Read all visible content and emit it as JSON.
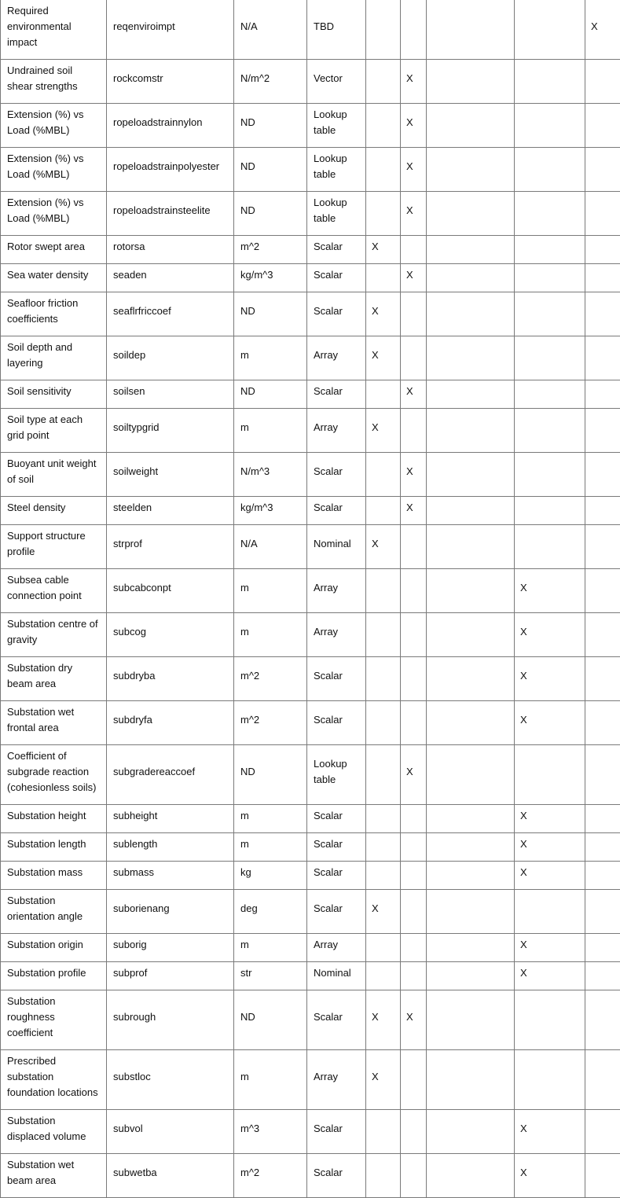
{
  "rows": [
    {
      "desc": "Required environmental impact",
      "id": "reqenviroimpt",
      "unit": "N/A",
      "type": "TBD",
      "marks": [
        "",
        "",
        "",
        "",
        "X"
      ]
    },
    {
      "desc": "Undrained soil shear strengths",
      "id": "rockcomstr",
      "unit": "N/m^2",
      "type": "Vector",
      "marks": [
        "",
        "X",
        "",
        "",
        ""
      ]
    },
    {
      "desc": "Extension (%) vs Load (%MBL)",
      "id": "ropeloadstrainnylon",
      "unit": "ND",
      "type": "Lookup table",
      "marks": [
        "",
        "X",
        "",
        "",
        ""
      ]
    },
    {
      "desc": "Extension (%) vs Load (%MBL)",
      "id": "ropeloadstrainpolyester",
      "unit": "ND",
      "type": "Lookup table",
      "marks": [
        "",
        "X",
        "",
        "",
        ""
      ]
    },
    {
      "desc": "Extension (%) vs Load (%MBL)",
      "id": "ropeloadstrainsteelite",
      "unit": "ND",
      "type": "Lookup table",
      "marks": [
        "",
        "X",
        "",
        "",
        ""
      ]
    },
    {
      "desc": "Rotor swept area",
      "id": "rotorsa",
      "unit": "m^2",
      "type": "Scalar",
      "marks": [
        "X",
        "",
        "",
        "",
        ""
      ]
    },
    {
      "desc": "Sea water density",
      "id": "seaden",
      "unit": "kg/m^3",
      "type": "Scalar",
      "marks": [
        "",
        "X",
        "",
        "",
        ""
      ]
    },
    {
      "desc": "Seafloor friction coefficients",
      "id": "seaflrfriccoef",
      "unit": "ND",
      "type": "Scalar",
      "marks": [
        "X",
        "",
        "",
        "",
        ""
      ]
    },
    {
      "desc": "Soil depth and layering",
      "id": "soildep",
      "unit": "m",
      "type": "Array",
      "marks": [
        "X",
        "",
        "",
        "",
        ""
      ]
    },
    {
      "desc": "Soil sensitivity",
      "id": "soilsen",
      "unit": "ND",
      "type": "Scalar",
      "marks": [
        "",
        "X",
        "",
        "",
        ""
      ]
    },
    {
      "desc": "Soil type at each grid point",
      "id": "soiltypgrid",
      "unit": "m",
      "type": "Array",
      "marks": [
        "X",
        "",
        "",
        "",
        ""
      ]
    },
    {
      "desc": "Buoyant unit weight of soil",
      "id": "soilweight",
      "unit": "N/m^3",
      "type": "Scalar",
      "marks": [
        "",
        "X",
        "",
        "",
        ""
      ]
    },
    {
      "desc": "Steel density",
      "id": "steelden",
      "unit": "kg/m^3",
      "type": "Scalar",
      "marks": [
        "",
        "X",
        "",
        "",
        ""
      ]
    },
    {
      "desc": "Support structure profile",
      "id": "strprof",
      "unit": "N/A",
      "type": "Nominal",
      "marks": [
        "X",
        "",
        "",
        "",
        ""
      ]
    },
    {
      "desc": "Subsea cable connection point",
      "id": "subcabconpt",
      "unit": "m",
      "type": "Array",
      "marks": [
        "",
        "",
        "",
        "X",
        ""
      ]
    },
    {
      "desc": "Substation centre of gravity",
      "id": "subcog",
      "unit": "m",
      "type": "Array",
      "marks": [
        "",
        "",
        "",
        "X",
        ""
      ]
    },
    {
      "desc": "Substation dry beam area",
      "id": "subdryba",
      "unit": "m^2",
      "type": "Scalar",
      "marks": [
        "",
        "",
        "",
        "X",
        ""
      ]
    },
    {
      "desc": "Substation wet frontal area",
      "id": "subdryfa",
      "unit": "m^2",
      "type": "Scalar",
      "marks": [
        "",
        "",
        "",
        "X",
        ""
      ]
    },
    {
      "desc": "Coefficient of subgrade reaction (cohesionless soils)",
      "id": "subgradereaccoef",
      "unit": "ND",
      "type": "Lookup table",
      "marks": [
        "",
        "X",
        "",
        "",
        ""
      ]
    },
    {
      "desc": "Substation height",
      "id": "subheight",
      "unit": "m",
      "type": "Scalar",
      "marks": [
        "",
        "",
        "",
        "X",
        ""
      ]
    },
    {
      "desc": "Substation length",
      "id": "sublength",
      "unit": "m",
      "type": "Scalar",
      "marks": [
        "",
        "",
        "",
        "X",
        ""
      ]
    },
    {
      "desc": "Substation mass",
      "id": "submass",
      "unit": "kg",
      "type": "Scalar",
      "marks": [
        "",
        "",
        "",
        "X",
        ""
      ]
    },
    {
      "desc": "Substation orientation angle",
      "id": "suborienang",
      "unit": "deg",
      "type": "Scalar",
      "marks": [
        "X",
        "",
        "",
        "",
        ""
      ]
    },
    {
      "desc": "Substation origin",
      "id": "suborig",
      "unit": "m",
      "type": "Array",
      "marks": [
        "",
        "",
        "",
        "X",
        ""
      ]
    },
    {
      "desc": "Substation profile",
      "id": "subprof",
      "unit": "str",
      "type": "Nominal",
      "marks": [
        "",
        "",
        "",
        "X",
        ""
      ]
    },
    {
      "desc": "Substation roughness coefficient",
      "id": "subrough",
      "unit": "ND",
      "type": "Scalar",
      "marks": [
        "X",
        "X",
        "",
        "",
        ""
      ]
    },
    {
      "desc": "Prescribed substation foundation locations",
      "id": "substloc",
      "unit": "m",
      "type": "Array",
      "marks": [
        "X",
        "",
        "",
        "",
        ""
      ]
    },
    {
      "desc": "Substation displaced volume",
      "id": "subvol",
      "unit": "m^3",
      "type": "Scalar",
      "marks": [
        "",
        "",
        "",
        "X",
        ""
      ]
    },
    {
      "desc": "Substation wet beam area",
      "id": "subwetba",
      "unit": "m^2",
      "type": "Scalar",
      "marks": [
        "",
        "",
        "",
        "X",
        ""
      ]
    }
  ]
}
